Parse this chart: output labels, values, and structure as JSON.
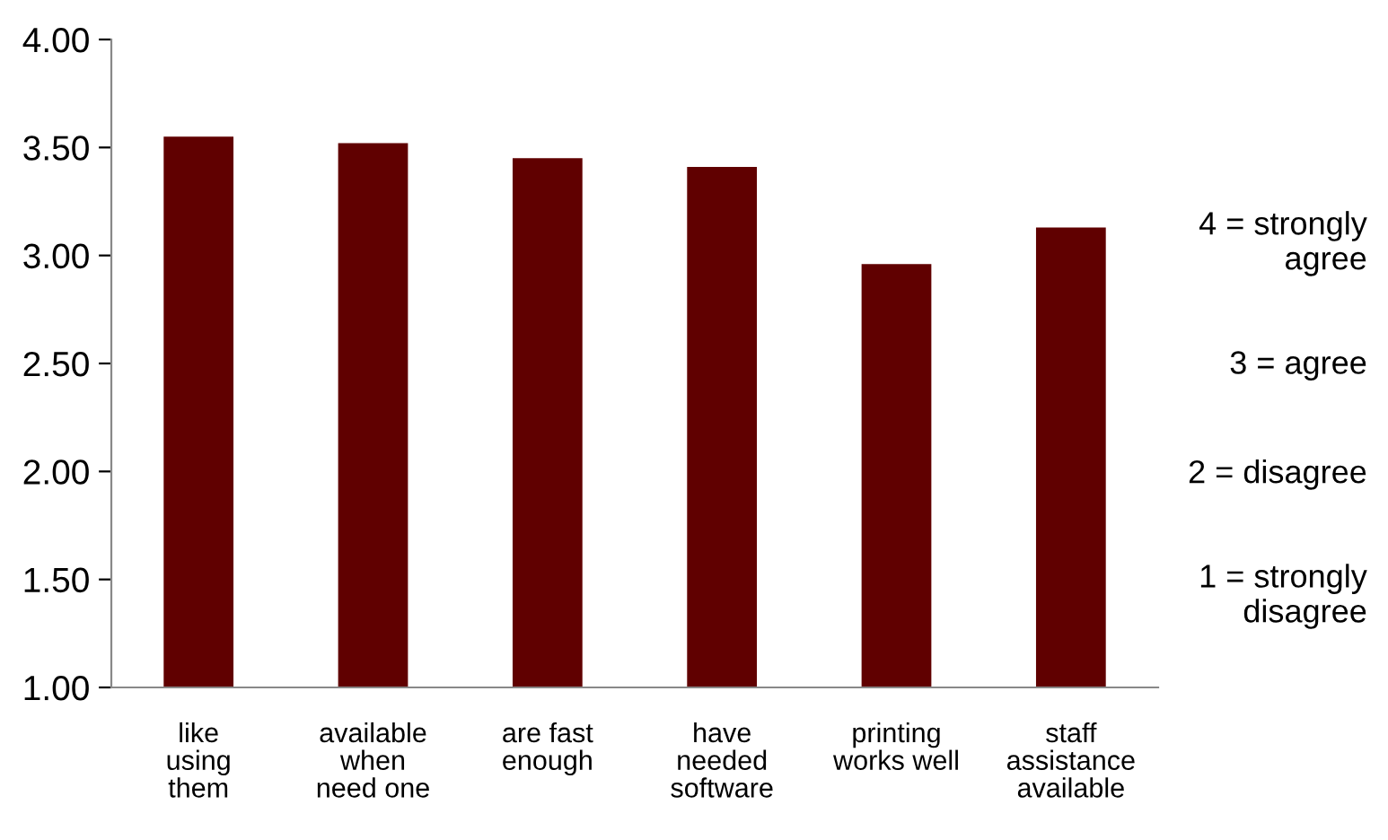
{
  "chart_data": {
    "type": "bar",
    "categories": [
      "like\nusing\nthem",
      "available\nwhen\nneed one",
      "are fast\nenough",
      "have\nneeded\nsoftware",
      "printing\nworks well",
      "staff\nassistance\navailable"
    ],
    "values": [
      3.55,
      3.52,
      3.45,
      3.41,
      2.96,
      3.13
    ],
    "color": "#600000",
    "ylim": [
      1.0,
      4.0
    ],
    "yticks": [
      {
        "value": 1.0,
        "label": "1.00"
      },
      {
        "value": 1.5,
        "label": "1.50"
      },
      {
        "value": 2.0,
        "label": "2.00"
      },
      {
        "value": 2.5,
        "label": "2.50"
      },
      {
        "value": 3.0,
        "label": "3.00"
      },
      {
        "value": 3.5,
        "label": "3.50"
      },
      {
        "value": 4.0,
        "label": "4.00"
      }
    ],
    "grid": false,
    "legend": false,
    "annotations": [
      "4 = strongly\nagree",
      "3 = agree",
      "2 = disagree",
      "1 = strongly\ndisagree"
    ]
  }
}
